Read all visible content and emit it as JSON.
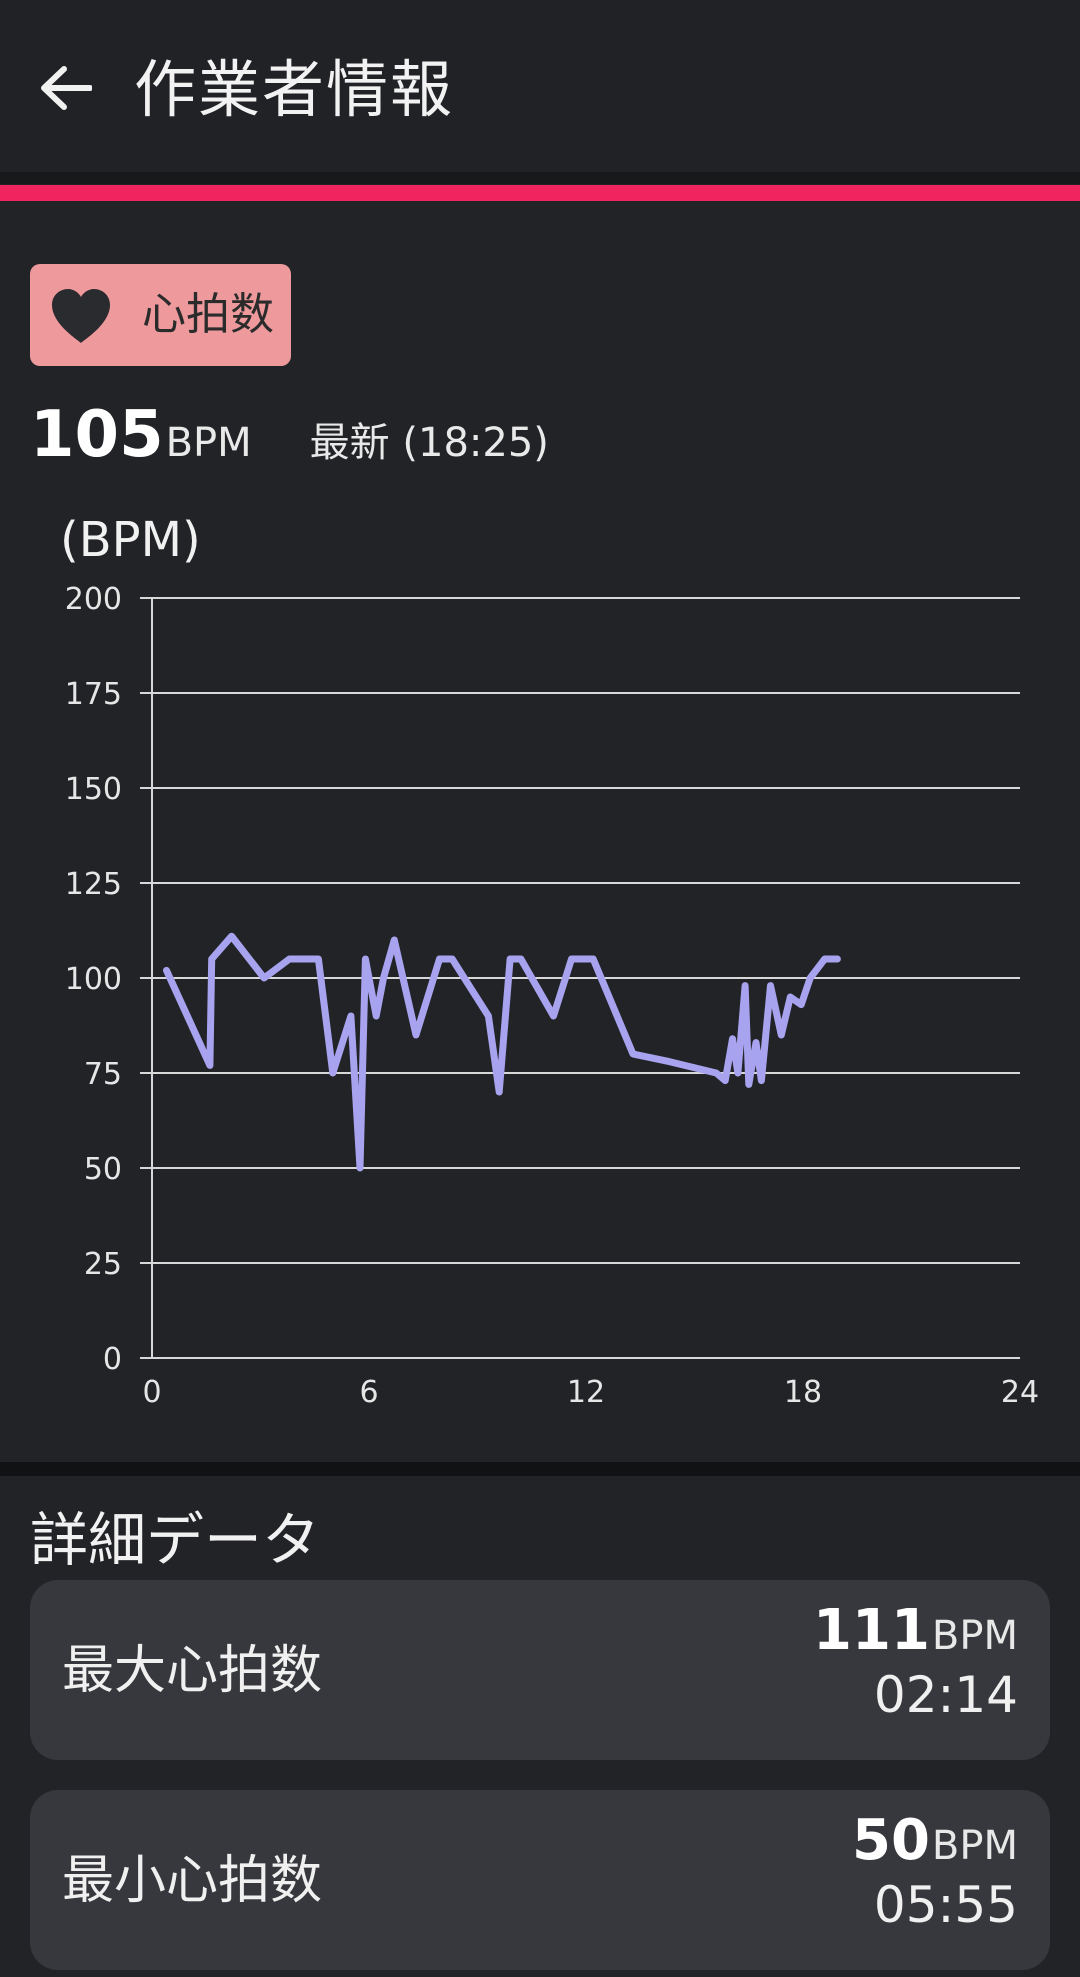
{
  "header": {
    "title": "作業者情報",
    "back_icon": "arrow-left-icon"
  },
  "chip": {
    "label": "心拍数",
    "icon": "heart-icon",
    "bg_color": "#ee9a9c"
  },
  "current": {
    "value": "105",
    "unit": "BPM",
    "latest": "最新 (18:25)"
  },
  "chart_data": {
    "type": "line",
    "ylabel": "(BPM)",
    "xlabel": "",
    "xlim": [
      0,
      24
    ],
    "ylim": [
      0,
      200
    ],
    "x_ticks": [
      "0",
      "6",
      "12",
      "18",
      "24"
    ],
    "y_ticks": [
      "0",
      "25",
      "50",
      "75",
      "100",
      "125",
      "150",
      "175",
      "200"
    ],
    "grid": true,
    "line_color": "#a7a3ee",
    "series": [
      {
        "x": [
          0.4,
          1.6,
          1.65,
          2.2,
          3.1,
          3.8,
          4.6,
          5.0,
          5.5,
          5.75,
          5.9,
          6.2,
          6.4,
          6.7,
          7.3,
          7.95,
          8.3,
          9.3,
          9.6,
          9.9,
          10.2,
          11.1,
          11.6,
          12.2,
          13.3,
          14.3,
          15.6,
          15.85,
          16.05,
          16.2,
          16.4,
          16.5,
          16.7,
          16.85,
          17.1,
          17.4,
          17.65,
          17.95,
          18.2,
          18.6,
          18.95
        ],
        "values": [
          102,
          77,
          105,
          111,
          100,
          105,
          105,
          75,
          90,
          50,
          105,
          90,
          100,
          110,
          85,
          105,
          105,
          90,
          70,
          105,
          105,
          90,
          105,
          105,
          80,
          78,
          75,
          73,
          84,
          75,
          98,
          72,
          83,
          73,
          98,
          85,
          95,
          93,
          100,
          105,
          105
        ]
      }
    ]
  },
  "details": {
    "title": "詳細データ",
    "max": {
      "label": "最大心拍数",
      "value": "111",
      "unit": "BPM",
      "time": "02:14"
    },
    "min": {
      "label": "最小心拍数",
      "value": "50",
      "unit": "BPM",
      "time": "05:55"
    }
  },
  "colors": {
    "accent": "#f0245f",
    "background": "#222327",
    "card": "#37383d"
  }
}
